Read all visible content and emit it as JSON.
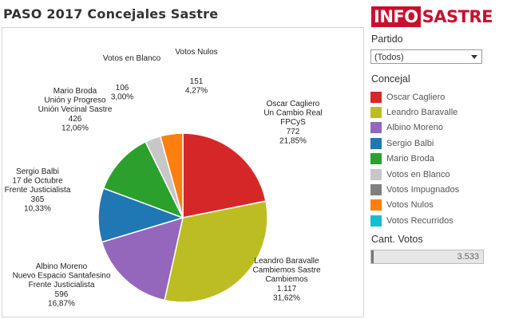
{
  "title": "PASO 2017 Concejales Sastre",
  "logo": {
    "part1": "INFO",
    "part2": "SASTRE"
  },
  "filters": {
    "partido_label": "Partido",
    "partido_value": "(Todos)",
    "concejal_label": "Concejal",
    "cant_votos_label": "Cant. Votos",
    "cant_votos_value": "3.533"
  },
  "legend": [
    {
      "name": "Oscar Cagliero",
      "color": "#d62728"
    },
    {
      "name": "Leandro Baravalle",
      "color": "#bcbd22"
    },
    {
      "name": "Albino Moreno",
      "color": "#9467bd"
    },
    {
      "name": "Sergio Balbi",
      "color": "#1f77b4"
    },
    {
      "name": "Mario Broda",
      "color": "#2ca02c"
    },
    {
      "name": "Votos en Blanco",
      "color": "#c7c7c7"
    },
    {
      "name": "Votos Impugnados",
      "color": "#7f7f7f"
    },
    {
      "name": "Votos Nulos",
      "color": "#ff7f0e"
    },
    {
      "name": "Votos Recurridos",
      "color": "#17becf"
    }
  ],
  "chart_data": {
    "type": "pie",
    "start": "12 o'clock, clockwise",
    "slices": [
      {
        "name": "Oscar Cagliero",
        "lines": [
          "Oscar Cagliero",
          "Un Cambio Real",
          "FPCyS",
          "772",
          "21,85%"
        ],
        "value": 772,
        "percent": 21.85,
        "color": "#d62728"
      },
      {
        "name": "Leandro Baravalle",
        "lines": [
          "Leandro Baravalle",
          "Cambiemos Sastre",
          "Cambiemos",
          "1.117",
          "31,62%"
        ],
        "value": 1117,
        "percent": 31.62,
        "color": "#bcbd22"
      },
      {
        "name": "Albino Moreno",
        "lines": [
          "Albino Moreno",
          "Nuevo Espacio Santafesino",
          "Frente Justicialista",
          "596",
          "16,87%"
        ],
        "value": 596,
        "percent": 16.87,
        "color": "#9467bd"
      },
      {
        "name": "Sergio Balbi",
        "lines": [
          "Sergio Balbi",
          "17 de Octubre",
          "Frente Justicialista",
          "365",
          "10,33%"
        ],
        "value": 365,
        "percent": 10.33,
        "color": "#1f77b4"
      },
      {
        "name": "Mario Broda",
        "lines": [
          "Mario Broda",
          "Unión y Progreso",
          "Unión Vecinal Sastre",
          "426",
          "12,06%"
        ],
        "value": 426,
        "percent": 12.06,
        "color": "#2ca02c"
      },
      {
        "name": "Votos en Blanco",
        "lines": [
          "106",
          "3,00%"
        ],
        "header": "Votos en Blanco",
        "value": 106,
        "percent": 3.0,
        "color": "#c7c7c7"
      },
      {
        "name": "Votos Nulos",
        "lines": [
          "151",
          "4,27%"
        ],
        "header": "Votos Nulos",
        "value": 151,
        "percent": 4.27,
        "color": "#ff7f0e"
      }
    ]
  }
}
